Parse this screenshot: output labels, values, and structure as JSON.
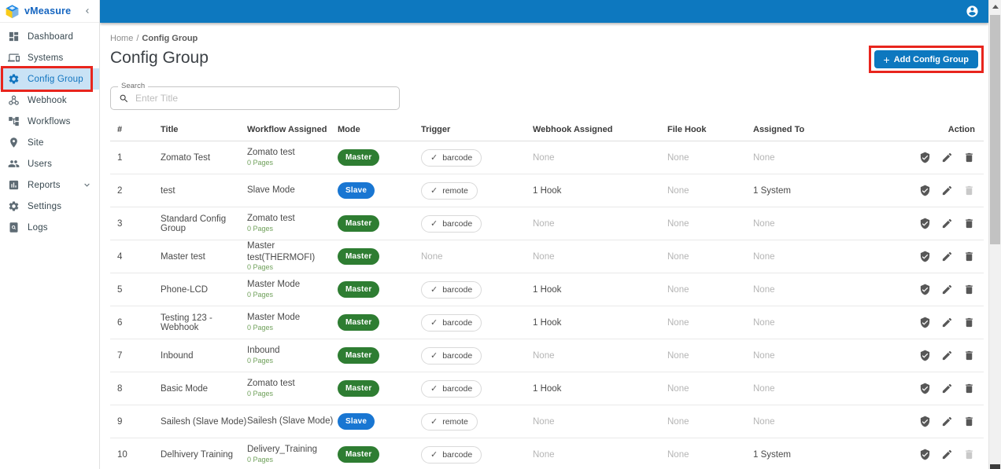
{
  "brand": {
    "name": "vMeasure"
  },
  "sidebar": {
    "items": [
      {
        "label": "Dashboard",
        "icon": "dashboard-icon",
        "active": false,
        "expandable": false,
        "annotated": false
      },
      {
        "label": "Systems",
        "icon": "systems-icon",
        "active": false,
        "expandable": false,
        "annotated": false
      },
      {
        "label": "Config Group",
        "icon": "config-group-icon",
        "active": true,
        "expandable": false,
        "annotated": true
      },
      {
        "label": "Webhook",
        "icon": "webhook-icon",
        "active": false,
        "expandable": false,
        "annotated": false
      },
      {
        "label": "Workflows",
        "icon": "workflows-icon",
        "active": false,
        "expandable": false,
        "annotated": false
      },
      {
        "label": "Site",
        "icon": "site-icon",
        "active": false,
        "expandable": false,
        "annotated": false
      },
      {
        "label": "Users",
        "icon": "users-icon",
        "active": false,
        "expandable": false,
        "annotated": false
      },
      {
        "label": "Reports",
        "icon": "reports-icon",
        "active": false,
        "expandable": true,
        "annotated": false
      },
      {
        "label": "Settings",
        "icon": "settings-icon",
        "active": false,
        "expandable": false,
        "annotated": false
      },
      {
        "label": "Logs",
        "icon": "logs-icon",
        "active": false,
        "expandable": false,
        "annotated": false
      }
    ]
  },
  "breadcrumb": {
    "home": "Home",
    "separator": "/",
    "current": "Config Group"
  },
  "page": {
    "title": "Config Group",
    "add_button_label": "Add Config Group"
  },
  "search": {
    "label": "Search",
    "placeholder": "Enter Title",
    "value": ""
  },
  "table": {
    "columns": [
      "#",
      "Title",
      "Workflow Assigned",
      "Mode",
      "Trigger",
      "Webhook Assigned",
      "File Hook",
      "Assigned To",
      "Action"
    ],
    "rows": [
      {
        "num": "1",
        "title": "Zomato Test",
        "workflow": "Zomato test",
        "pages": "0 Pages",
        "mode": "Master",
        "trigger": "barcode",
        "webhook": "None",
        "file_hook": "None",
        "assigned_to": "None",
        "delete_enabled": true
      },
      {
        "num": "2",
        "title": "test",
        "workflow": "Slave Mode",
        "pages": "",
        "mode": "Slave",
        "trigger": "remote",
        "webhook": "1 Hook",
        "file_hook": "None",
        "assigned_to": "1 System",
        "delete_enabled": false
      },
      {
        "num": "3",
        "title": "Standard Config Group",
        "workflow": "Zomato test",
        "pages": "0 Pages",
        "mode": "Master",
        "trigger": "barcode",
        "webhook": "None",
        "file_hook": "None",
        "assigned_to": "None",
        "delete_enabled": true
      },
      {
        "num": "4",
        "title": "Master test",
        "workflow": "Master test(THERMOFI)",
        "pages": "0 Pages",
        "mode": "Master",
        "trigger": "None",
        "webhook": "None",
        "file_hook": "None",
        "assigned_to": "None",
        "delete_enabled": true
      },
      {
        "num": "5",
        "title": "Phone-LCD",
        "workflow": "Master Mode",
        "pages": "0 Pages",
        "mode": "Master",
        "trigger": "barcode",
        "webhook": "1 Hook",
        "file_hook": "None",
        "assigned_to": "None",
        "delete_enabled": true
      },
      {
        "num": "6",
        "title": "Testing 123 - Webhook",
        "workflow": "Master Mode",
        "pages": "0 Pages",
        "mode": "Master",
        "trigger": "barcode",
        "webhook": "1 Hook",
        "file_hook": "None",
        "assigned_to": "None",
        "delete_enabled": true
      },
      {
        "num": "7",
        "title": "Inbound",
        "workflow": "Inbound",
        "pages": "0 Pages",
        "mode": "Master",
        "trigger": "barcode",
        "webhook": "None",
        "file_hook": "None",
        "assigned_to": "None",
        "delete_enabled": true
      },
      {
        "num": "8",
        "title": "Basic Mode",
        "workflow": "Zomato test",
        "pages": "0 Pages",
        "mode": "Master",
        "trigger": "barcode",
        "webhook": "1 Hook",
        "file_hook": "None",
        "assigned_to": "None",
        "delete_enabled": true
      },
      {
        "num": "9",
        "title": "Sailesh (Slave Mode)",
        "workflow": "Sailesh (Slave Mode)",
        "pages": "",
        "mode": "Slave",
        "trigger": "remote",
        "webhook": "None",
        "file_hook": "None",
        "assigned_to": "None",
        "delete_enabled": true
      },
      {
        "num": "10",
        "title": "Delhivery Training",
        "workflow": "Delivery_Training",
        "pages": "0 Pages",
        "mode": "Master",
        "trigger": "barcode",
        "webhook": "None",
        "file_hook": "None",
        "assigned_to": "1 System",
        "delete_enabled": false
      }
    ]
  },
  "colors": {
    "topbar": "#0d78bf",
    "accent": "#0d78bf",
    "master_pill": "#2e7d32",
    "slave_pill": "#1976d2",
    "pages_text": "#6fa05a",
    "annotation": "#e8251d"
  }
}
